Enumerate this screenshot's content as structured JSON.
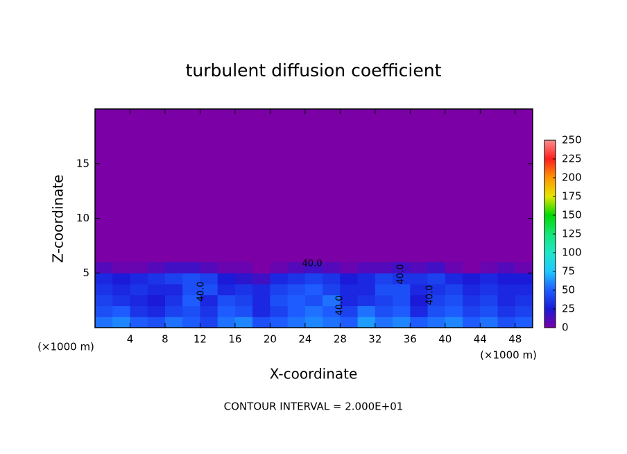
{
  "chart_data": {
    "type": "heatmap",
    "title": "turbulent diffusion coefficient",
    "x_label": "X-coordinate",
    "y_label": "Z-coordinate",
    "x_unit": "(×1000 m)",
    "y_unit": "(×1000 m)",
    "footer": "CONTOUR INTERVAL = 2.000E+01",
    "contour_labels": [
      "40.0",
      "40.0",
      "40.0",
      "40.0",
      "40.0"
    ],
    "xlim": [
      0,
      50
    ],
    "ylim": [
      0,
      20
    ],
    "xticks": [
      4,
      8,
      12,
      16,
      20,
      24,
      28,
      32,
      36,
      40,
      44,
      48
    ],
    "yticks": [
      5,
      10,
      15
    ],
    "background_color": "#7b00a6",
    "xbins": [
      0,
      2,
      4,
      6,
      8,
      10,
      12,
      14,
      16,
      18,
      20,
      22,
      24,
      26,
      28,
      30,
      32,
      34,
      36,
      38,
      40,
      42,
      44,
      46,
      48,
      50
    ],
    "zbins": [
      0,
      1,
      2,
      3,
      4,
      5,
      6
    ],
    "values": [
      [
        55,
        60,
        50,
        45,
        55,
        50,
        40,
        55,
        60,
        45,
        50,
        55,
        60,
        55,
        50,
        65,
        55,
        60,
        50,
        55,
        60,
        50,
        55,
        45,
        50
      ],
      [
        45,
        50,
        35,
        30,
        40,
        45,
        35,
        50,
        45,
        30,
        40,
        50,
        55,
        50,
        40,
        55,
        45,
        50,
        30,
        45,
        50,
        40,
        45,
        35,
        40
      ],
      [
        40,
        35,
        30,
        25,
        35,
        50,
        30,
        45,
        40,
        30,
        45,
        50,
        45,
        55,
        30,
        35,
        40,
        45,
        25,
        40,
        45,
        35,
        40,
        30,
        35
      ],
      [
        35,
        30,
        35,
        30,
        30,
        45,
        45,
        30,
        35,
        30,
        40,
        45,
        50,
        40,
        30,
        30,
        45,
        45,
        30,
        35,
        40,
        30,
        35,
        30,
        30
      ],
      [
        30,
        25,
        30,
        35,
        40,
        45,
        40,
        25,
        20,
        15,
        30,
        35,
        40,
        35,
        25,
        30,
        40,
        35,
        35,
        40,
        30,
        25,
        30,
        25,
        25
      ],
      [
        10,
        5,
        5,
        10,
        15,
        15,
        10,
        5,
        5,
        0,
        5,
        10,
        15,
        10,
        5,
        10,
        10,
        15,
        10,
        15,
        5,
        0,
        5,
        10,
        5
      ]
    ],
    "colorbar": {
      "ticks": [
        0,
        25,
        50,
        75,
        100,
        125,
        150,
        175,
        200,
        225,
        250
      ],
      "colors": [
        "#7b00a6",
        "#1a1ad8",
        "#1e5cff",
        "#1ec8ff",
        "#1ee6c8",
        "#14e678",
        "#00d800",
        "#e6e600",
        "#ff9600",
        "#ff1e1e",
        "#ff8c8c"
      ]
    }
  }
}
